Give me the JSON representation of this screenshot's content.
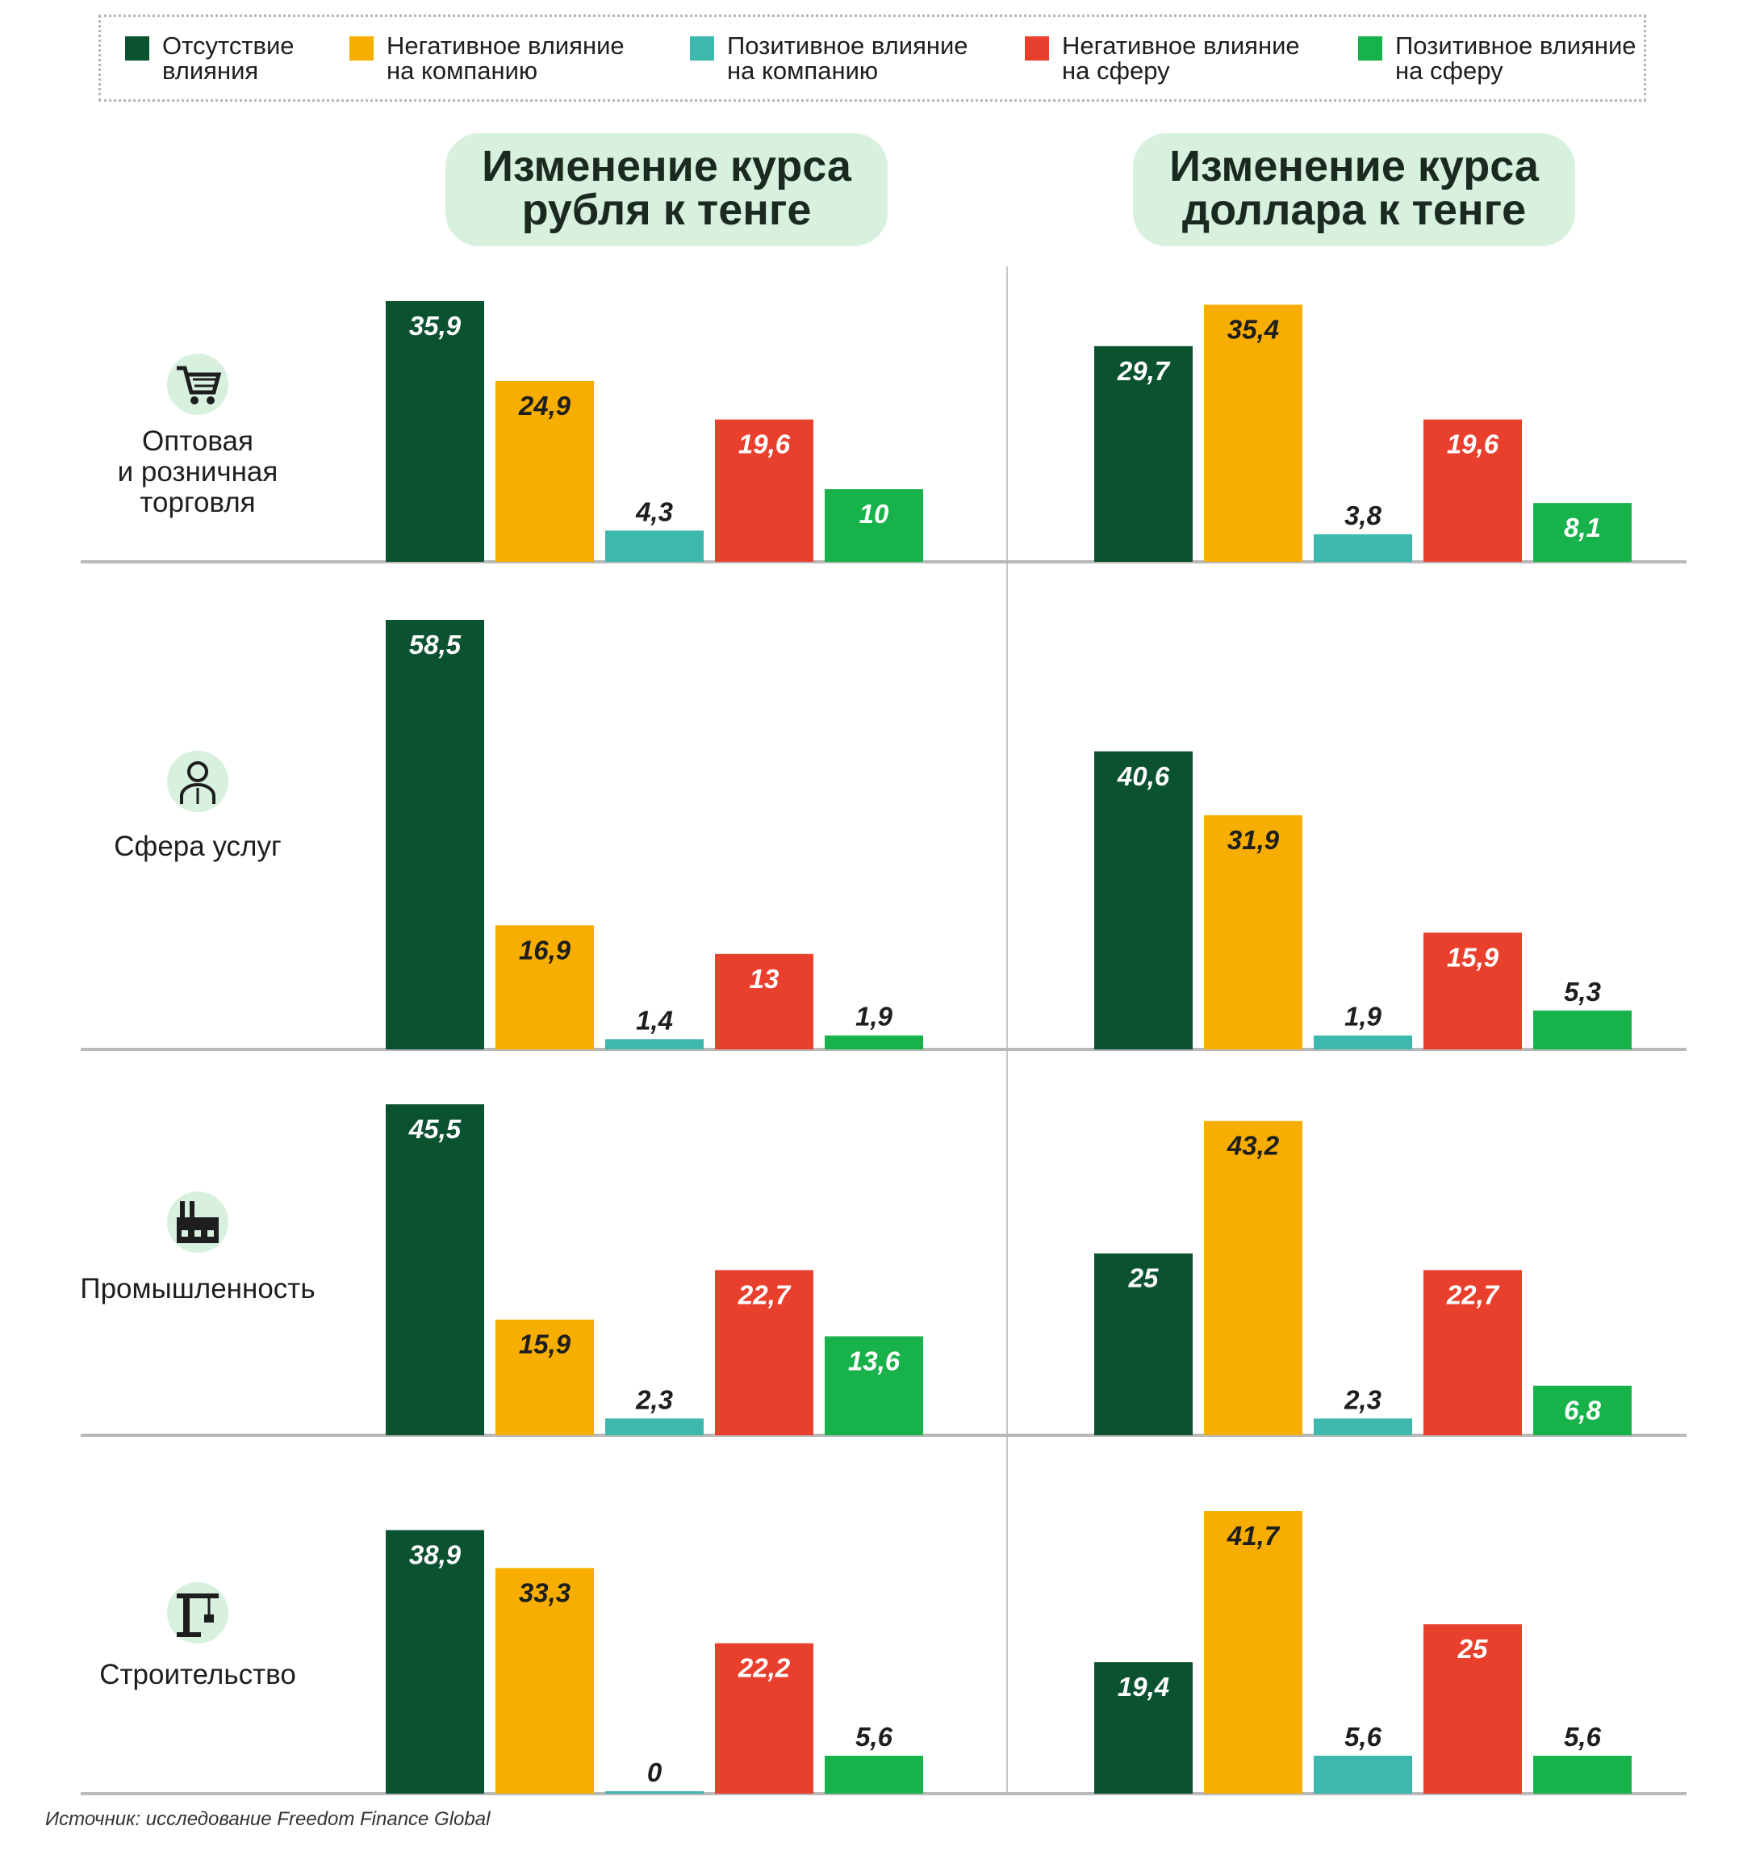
{
  "legend": [
    {
      "label_lines": [
        "Отсутствие",
        "влияния"
      ],
      "color": "#0b5230"
    },
    {
      "label_lines": [
        "Негативное влияние",
        "на компанию"
      ],
      "color": "#f7ae00"
    },
    {
      "label_lines": [
        "Позитивное влияние",
        "на компанию"
      ],
      "color": "#3cb8ad"
    },
    {
      "label_lines": [
        "Негативное влияние",
        "на сферу"
      ],
      "color": "#e8402d"
    },
    {
      "label_lines": [
        "Позитивное влияние",
        "на сферу"
      ],
      "color": "#18b24a"
    }
  ],
  "panels": [
    {
      "title_lines": [
        "Изменение курса",
        "рубля к тенге"
      ]
    },
    {
      "title_lines": [
        "Изменение курса",
        "доллара к тенге"
      ]
    }
  ],
  "sectors": [
    {
      "label_lines": [
        "Оптовая",
        "и розничная",
        "торговля"
      ],
      "icon": "shopping-cart-icon"
    },
    {
      "label_lines": [
        "Сфера услуг"
      ],
      "icon": "service-worker-icon"
    },
    {
      "label_lines": [
        "Промышленность"
      ],
      "icon": "factory-icon"
    },
    {
      "label_lines": [
        "Строительство"
      ],
      "icon": "construction-crane-icon"
    }
  ],
  "chart_data": {
    "type": "bar",
    "series_names": [
      "Отсутствие влияния",
      "Негативное влияние на компанию",
      "Позитивное влияние на компанию",
      "Негативное влияние на сферу",
      "Позитивное влияние на сферу"
    ],
    "colors": [
      "#0b5230",
      "#f7ae00",
      "#3cb8ad",
      "#e8402d",
      "#18b24a"
    ],
    "label_colors": [
      "#ffffff",
      "#1e1e1e",
      "#1e1e1e",
      "#ffffff",
      "#ffffff"
    ],
    "panels": [
      {
        "title": "Изменение курса рубля к тенге",
        "groups": [
          {
            "sector": "Оптовая и розничная торговля",
            "values": [
              35.9,
              24.9,
              4.3,
              19.6,
              10
            ],
            "labels": [
              "35,9",
              "24,9",
              "4,3",
              "19,6",
              "10"
            ]
          },
          {
            "sector": "Сфера услуг",
            "values": [
              58.5,
              16.9,
              1.4,
              13,
              1.9
            ],
            "labels": [
              "58,5",
              "16,9",
              "1,4",
              "13",
              "1,9"
            ]
          },
          {
            "sector": "Промышленность",
            "values": [
              45.5,
              15.9,
              2.3,
              22.7,
              13.6
            ],
            "labels": [
              "45,5",
              "15,9",
              "2,3",
              "22,7",
              "13,6"
            ]
          },
          {
            "sector": "Строительство",
            "values": [
              38.9,
              33.3,
              0,
              22.2,
              5.6
            ],
            "labels": [
              "38,9",
              "33,3",
              "0",
              "22,2",
              "5,6"
            ]
          }
        ]
      },
      {
        "title": "Изменение курса доллара к тенге",
        "groups": [
          {
            "sector": "Оптовая и розничная торговля",
            "values": [
              29.7,
              35.4,
              3.8,
              19.6,
              8.1
            ],
            "labels": [
              "29,7",
              "35,4",
              "3,8",
              "19,6",
              "8,1"
            ]
          },
          {
            "sector": "Сфера услуг",
            "values": [
              40.6,
              31.9,
              1.9,
              15.9,
              5.3
            ],
            "labels": [
              "40,6",
              "31,9",
              "1,9",
              "15,9",
              "5,3"
            ]
          },
          {
            "sector": "Промышленность",
            "values": [
              25,
              43.2,
              2.3,
              22.7,
              6.8
            ],
            "labels": [
              "25",
              "43,2",
              "2,3",
              "22,7",
              "6,8"
            ]
          },
          {
            "sector": "Строительство",
            "values": [
              19.4,
              41.7,
              5.6,
              25,
              5.6
            ],
            "labels": [
              "19,4",
              "41,7",
              "5,6",
              "25",
              "5,6"
            ]
          }
        ]
      }
    ]
  },
  "source": "Источник: исследование Freedom Finance Global"
}
